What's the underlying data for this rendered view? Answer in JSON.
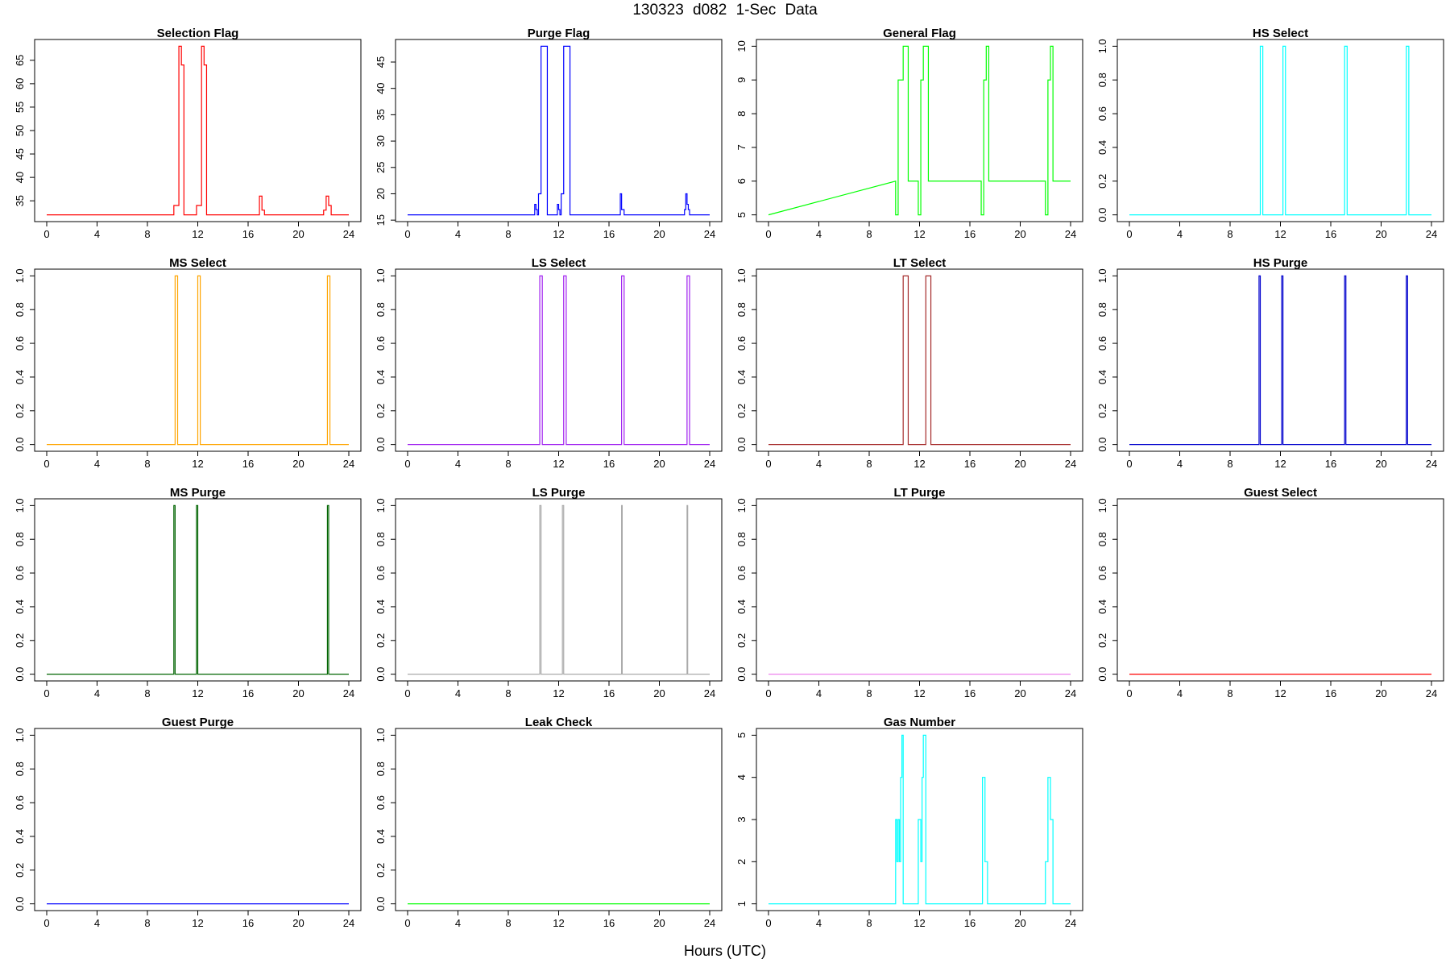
{
  "figure": {
    "title": "130323   d082   1-Sec Data",
    "xlabel": "Hours (UTC)"
  },
  "chart_data": [
    {
      "type": "line",
      "title": "Selection Flag",
      "color": "#ff0000",
      "xlim": [
        0,
        24
      ],
      "ylim": [
        32,
        68
      ],
      "xticks": [
        0,
        4,
        8,
        12,
        16,
        20,
        24
      ],
      "yticks": [
        35,
        40,
        45,
        50,
        55,
        60,
        65
      ],
      "series": [
        {
          "x": [
            0,
            10.1,
            10.1,
            10.3,
            10.3,
            10.5,
            10.5,
            10.7,
            10.7,
            10.9,
            10.9,
            11.1,
            11.1,
            11.9,
            11.9,
            12.1,
            12.1,
            12.3,
            12.3,
            12.5,
            12.5,
            12.7,
            12.7,
            12.9,
            12.9,
            16.9,
            16.9,
            17.1,
            17.1,
            17.3,
            17.3,
            22.0,
            22.0,
            22.2,
            22.2,
            22.4,
            22.4,
            22.6,
            22.6,
            24
          ],
          "y": [
            32,
            32,
            34,
            34,
            34,
            34,
            68,
            68,
            64,
            64,
            32,
            32,
            32,
            32,
            34,
            34,
            34,
            34,
            68,
            68,
            64,
            64,
            32,
            32,
            32,
            32,
            36,
            36,
            33,
            33,
            32,
            32,
            33,
            33,
            36,
            36,
            34,
            34,
            32,
            32
          ]
        }
      ]
    },
    {
      "type": "line",
      "title": "Purge Flag",
      "color": "#0000ff",
      "xlim": [
        0,
        24
      ],
      "ylim": [
        16,
        48
      ],
      "xticks": [
        0,
        4,
        8,
        12,
        16,
        20,
        24
      ],
      "yticks": [
        15,
        20,
        25,
        30,
        35,
        40,
        45
      ],
      "series": [
        {
          "x": [
            0,
            10.1,
            10.1,
            10.2,
            10.2,
            10.3,
            10.3,
            10.4,
            10.4,
            10.5,
            10.5,
            10.6,
            10.6,
            10.7,
            10.7,
            11.1,
            11.1,
            11.9,
            11.9,
            12.0,
            12.0,
            12.1,
            12.1,
            12.2,
            12.2,
            12.3,
            12.3,
            12.4,
            12.4,
            12.5,
            12.5,
            12.9,
            12.9,
            16.9,
            16.9,
            17.0,
            17.0,
            17.1,
            17.1,
            17.2,
            17.2,
            22.0,
            22.0,
            22.1,
            22.1,
            22.2,
            22.2,
            22.3,
            22.3,
            22.4,
            22.4,
            24
          ],
          "y": [
            16,
            16,
            18,
            18,
            17,
            17,
            16,
            16,
            20,
            20,
            20,
            20,
            48,
            48,
            48,
            48,
            16,
            16,
            18,
            18,
            17,
            17,
            16,
            16,
            20,
            20,
            20,
            20,
            48,
            48,
            48,
            48,
            16,
            16,
            20,
            20,
            17,
            17,
            17,
            17,
            16,
            16,
            17,
            17,
            20,
            20,
            18,
            18,
            17,
            17,
            16,
            16
          ]
        }
      ]
    },
    {
      "type": "line",
      "title": "General Flag",
      "color": "#00ff00",
      "xlim": [
        0,
        24
      ],
      "ylim": [
        5,
        10
      ],
      "xticks": [
        0,
        4,
        8,
        12,
        16,
        20,
        24
      ],
      "yticks": [
        5,
        6,
        7,
        8,
        9,
        10
      ],
      "series": [
        {
          "x": [
            0,
            10.1,
            10.1,
            10.3,
            10.3,
            10.7,
            10.7,
            11.1,
            11.1,
            11.9,
            11.9,
            12.1,
            12.1,
            12.3,
            12.3,
            12.7,
            12.7,
            16.9,
            16.9,
            17.1,
            17.1,
            17.3,
            17.3,
            17.5,
            17.5,
            22.0,
            22.0,
            22.2,
            22.2,
            22.4,
            22.4,
            22.6,
            22.6,
            24
          ],
          "y": [
            5,
            6,
            5,
            5,
            9,
            9,
            10,
            10,
            6,
            6,
            5,
            5,
            9,
            9,
            10,
            10,
            6,
            6,
            5,
            5,
            9,
            9,
            10,
            10,
            6,
            6,
            5,
            5,
            9,
            9,
            10,
            10,
            6,
            6
          ]
        }
      ]
    },
    {
      "type": "line",
      "title": "HS Select",
      "color": "#00ffff",
      "xlim": [
        0,
        24
      ],
      "ylim": [
        0,
        1
      ],
      "xticks": [
        0,
        4,
        8,
        12,
        16,
        20,
        24
      ],
      "yticks": [
        0.0,
        0.2,
        0.4,
        0.6,
        0.8,
        1.0
      ],
      "series": [
        {
          "x": [
            0,
            10.4,
            10.4,
            10.6,
            10.6,
            12.2,
            12.2,
            12.4,
            12.4,
            17.1,
            17.1,
            17.3,
            17.3,
            22.0,
            22.0,
            22.2,
            22.2,
            24
          ],
          "y": [
            0,
            0,
            1,
            1,
            0,
            0,
            1,
            1,
            0,
            0,
            1,
            1,
            0,
            0,
            1,
            1,
            0,
            0
          ]
        }
      ]
    },
    {
      "type": "line",
      "title": "MS Select",
      "color": "#ffa500",
      "xlim": [
        0,
        24
      ],
      "ylim": [
        0,
        1
      ],
      "xticks": [
        0,
        4,
        8,
        12,
        16,
        20,
        24
      ],
      "yticks": [
        0.0,
        0.2,
        0.4,
        0.6,
        0.8,
        1.0
      ],
      "series": [
        {
          "x": [
            0,
            10.2,
            10.2,
            10.4,
            10.4,
            12.0,
            12.0,
            12.2,
            12.2,
            22.3,
            22.3,
            22.5,
            22.5,
            24
          ],
          "y": [
            0,
            0,
            1,
            1,
            0,
            0,
            1,
            1,
            0,
            0,
            1,
            1,
            0,
            0
          ]
        }
      ]
    },
    {
      "type": "line",
      "title": "LS Select",
      "color": "#a020f0",
      "xlim": [
        0,
        24
      ],
      "ylim": [
        0,
        1
      ],
      "xticks": [
        0,
        4,
        8,
        12,
        16,
        20,
        24
      ],
      "yticks": [
        0.0,
        0.2,
        0.4,
        0.6,
        0.8,
        1.0
      ],
      "series": [
        {
          "x": [
            0,
            10.5,
            10.5,
            10.7,
            10.7,
            12.4,
            12.4,
            12.6,
            12.6,
            17.0,
            17.0,
            17.2,
            17.2,
            22.2,
            22.2,
            22.4,
            22.4,
            24
          ],
          "y": [
            0,
            0,
            1,
            1,
            0,
            0,
            1,
            1,
            0,
            0,
            1,
            1,
            0,
            0,
            1,
            1,
            0,
            0
          ]
        }
      ]
    },
    {
      "type": "line",
      "title": "LT Select",
      "color": "#a52a2a",
      "xlim": [
        0,
        24
      ],
      "ylim": [
        0,
        1
      ],
      "xticks": [
        0,
        4,
        8,
        12,
        16,
        20,
        24
      ],
      "yticks": [
        0.0,
        0.2,
        0.4,
        0.6,
        0.8,
        1.0
      ],
      "series": [
        {
          "x": [
            0,
            10.7,
            10.7,
            11.1,
            11.1,
            12.5,
            12.5,
            12.9,
            12.9,
            24
          ],
          "y": [
            0,
            0,
            1,
            1,
            0,
            0,
            1,
            1,
            0,
            0
          ]
        }
      ]
    },
    {
      "type": "line",
      "title": "HS Purge",
      "color": "#0000cd",
      "xlim": [
        0,
        24
      ],
      "ylim": [
        0,
        1
      ],
      "xticks": [
        0,
        4,
        8,
        12,
        16,
        20,
        24
      ],
      "yticks": [
        0.0,
        0.2,
        0.4,
        0.6,
        0.8,
        1.0
      ],
      "series": [
        {
          "x": [
            0,
            10.3,
            10.3,
            10.4,
            10.4,
            12.1,
            12.1,
            12.2,
            12.2,
            17.1,
            17.1,
            17.2,
            17.2,
            22.0,
            22.0,
            22.1,
            22.1,
            24
          ],
          "y": [
            0,
            0,
            1,
            1,
            0,
            0,
            1,
            1,
            0,
            0,
            1,
            1,
            0,
            0,
            1,
            1,
            0,
            0
          ]
        }
      ]
    },
    {
      "type": "line",
      "title": "MS Purge",
      "color": "#006400",
      "xlim": [
        0,
        24
      ],
      "ylim": [
        0,
        1
      ],
      "xticks": [
        0,
        4,
        8,
        12,
        16,
        20,
        24
      ],
      "yticks": [
        0.0,
        0.2,
        0.4,
        0.6,
        0.8,
        1.0
      ],
      "series": [
        {
          "x": [
            0,
            10.1,
            10.1,
            10.2,
            10.2,
            11.9,
            11.9,
            12.0,
            12.0,
            22.3,
            22.3,
            22.4,
            22.4,
            24
          ],
          "y": [
            0,
            0,
            1,
            1,
            0,
            0,
            1,
            1,
            0,
            0,
            1,
            1,
            0,
            0
          ]
        }
      ]
    },
    {
      "type": "line",
      "title": "LS Purge",
      "color": "#aaaaaa",
      "xlim": [
        0,
        24
      ],
      "ylim": [
        0,
        1
      ],
      "xticks": [
        0,
        4,
        8,
        12,
        16,
        20,
        24
      ],
      "yticks": [
        0.0,
        0.2,
        0.4,
        0.6,
        0.8,
        1.0
      ],
      "series": [
        {
          "x": [
            0,
            10.5,
            10.5,
            10.6,
            10.6,
            12.3,
            12.3,
            12.4,
            12.4,
            17.0,
            17.0,
            17.05,
            17.05,
            22.2,
            22.2,
            22.25,
            22.25,
            24
          ],
          "y": [
            0,
            0,
            1,
            1,
            0,
            0,
            1,
            1,
            0,
            0,
            1,
            1,
            0,
            0,
            1,
            1,
            0,
            0
          ]
        }
      ]
    },
    {
      "type": "line",
      "title": "LT Purge",
      "color": "#ee82ee",
      "xlim": [
        0,
        24
      ],
      "ylim": [
        0,
        1
      ],
      "xticks": [
        0,
        4,
        8,
        12,
        16,
        20,
        24
      ],
      "yticks": [
        0.0,
        0.2,
        0.4,
        0.6,
        0.8,
        1.0
      ],
      "series": [
        {
          "x": [
            0,
            24
          ],
          "y": [
            0,
            0
          ]
        }
      ]
    },
    {
      "type": "line",
      "title": "Guest Select",
      "color": "#ff0000",
      "xlim": [
        0,
        24
      ],
      "ylim": [
        0,
        1
      ],
      "xticks": [
        0,
        4,
        8,
        12,
        16,
        20,
        24
      ],
      "yticks": [
        0.0,
        0.2,
        0.4,
        0.6,
        0.8,
        1.0
      ],
      "series": [
        {
          "x": [
            0,
            24
          ],
          "y": [
            0,
            0
          ]
        }
      ]
    },
    {
      "type": "line",
      "title": "Guest Purge",
      "color": "#0000ff",
      "xlim": [
        0,
        24
      ],
      "ylim": [
        0,
        1
      ],
      "xticks": [
        0,
        4,
        8,
        12,
        16,
        20,
        24
      ],
      "yticks": [
        0.0,
        0.2,
        0.4,
        0.6,
        0.8,
        1.0
      ],
      "series": [
        {
          "x": [
            0,
            24
          ],
          "y": [
            0,
            0
          ]
        }
      ]
    },
    {
      "type": "line",
      "title": "Leak Check",
      "color": "#00ff00",
      "xlim": [
        0,
        24
      ],
      "ylim": [
        0,
        1
      ],
      "xticks": [
        0,
        4,
        8,
        12,
        16,
        20,
        24
      ],
      "yticks": [
        0.0,
        0.2,
        0.4,
        0.6,
        0.8,
        1.0
      ],
      "series": [
        {
          "x": [
            0,
            24
          ],
          "y": [
            0,
            0
          ]
        }
      ]
    },
    {
      "type": "line",
      "title": "Gas Number",
      "color": "#00ffff",
      "xlim": [
        0,
        24
      ],
      "ylim": [
        1,
        5
      ],
      "xticks": [
        0,
        4,
        8,
        12,
        16,
        20,
        24
      ],
      "yticks": [
        1,
        2,
        3,
        4,
        5
      ],
      "series": [
        {
          "x": [
            0,
            10.1,
            10.1,
            10.2,
            10.2,
            10.3,
            10.3,
            10.4,
            10.4,
            10.5,
            10.5,
            10.6,
            10.6,
            10.7,
            10.7,
            10.9,
            10.9,
            11.9,
            11.9,
            12.1,
            12.1,
            12.2,
            12.2,
            12.3,
            12.3,
            12.5,
            12.5,
            12.7,
            12.7,
            17.0,
            17.0,
            17.2,
            17.2,
            17.4,
            17.4,
            22.0,
            22.0,
            22.2,
            22.2,
            22.4,
            22.4,
            22.6,
            22.6,
            24
          ],
          "y": [
            1,
            1,
            3,
            3,
            2,
            2,
            3,
            3,
            2,
            2,
            4,
            4,
            5,
            5,
            1,
            1,
            1,
            1,
            3,
            3,
            2,
            2,
            4,
            4,
            5,
            5,
            1,
            1,
            1,
            1,
            4,
            4,
            2,
            2,
            1,
            1,
            2,
            2,
            4,
            4,
            3,
            3,
            1,
            1
          ]
        }
      ]
    }
  ]
}
